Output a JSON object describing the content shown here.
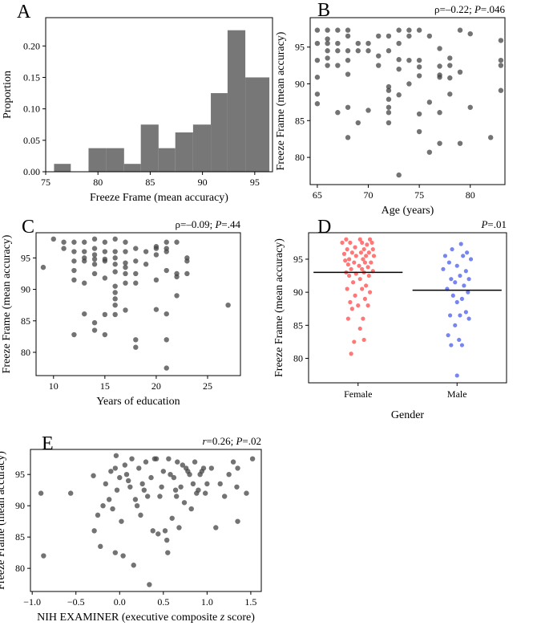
{
  "chart_data": [
    {
      "panel": "A",
      "type": "bar",
      "title": "",
      "xlabel": "Freeze Frame (mean accuracy)",
      "ylabel": "Proportion",
      "xlim": [
        75,
        96.7
      ],
      "ylim": [
        0,
        0.245
      ],
      "xticks": [
        75,
        80,
        85,
        90,
        95
      ],
      "yticks": [
        0.0,
        0.05,
        0.1,
        0.15,
        0.2
      ],
      "ytick_labels": [
        "0.00",
        "0.05",
        "0.10",
        "0.15",
        "0.20"
      ],
      "bin_edges": [
        75.8,
        77.4,
        79.1,
        80.8,
        82.5,
        84.1,
        85.8,
        87.4,
        89.1,
        90.8,
        92.4,
        94.1,
        96.4
      ],
      "values": [
        0.0125,
        0.0,
        0.0375,
        0.0375,
        0.0125,
        0.075,
        0.0375,
        0.0625,
        0.075,
        0.125,
        0.225,
        0.15
      ],
      "color": "#777777"
    },
    {
      "panel": "B",
      "type": "scatter",
      "stat_prefix": "ρ=–0.22; ",
      "stat_italic": "P",
      "stat_suffix": "=.046",
      "xlabel": "Age (years)",
      "ylabel": "Freeze Frame (mean accuracy)",
      "xlim": [
        64.3,
        83.4
      ],
      "ylim": [
        76.3,
        99.0
      ],
      "xticks": [
        65,
        70,
        75,
        80
      ],
      "yticks": [
        80,
        85,
        90,
        95
      ],
      "x": [
        65,
        65,
        65,
        65,
        65,
        65,
        66,
        66,
        66,
        66,
        66,
        66,
        67,
        67,
        67,
        67,
        67,
        68,
        68,
        68,
        68,
        68,
        68,
        68,
        69,
        69,
        69,
        70,
        70,
        70,
        71,
        71,
        71,
        72,
        72,
        72,
        72,
        72,
        72,
        72,
        72,
        73,
        73,
        73,
        73,
        73,
        73,
        74,
        74,
        74,
        74,
        75,
        75,
        75,
        75,
        75,
        75,
        76,
        76,
        76,
        77,
        77,
        77,
        77,
        77,
        77,
        78,
        78,
        78,
        78,
        79,
        79,
        79,
        80,
        80,
        82,
        83,
        83,
        83,
        83
      ],
      "y": [
        97.3,
        95.5,
        93.2,
        90.9,
        88.6,
        87.3,
        97.3,
        96.1,
        95.5,
        94.5,
        93.5,
        92.5,
        97.3,
        95.5,
        94.5,
        92.5,
        86.1,
        97.3,
        96.5,
        94.5,
        93.2,
        91.3,
        86.8,
        82.7,
        95.5,
        94.5,
        84.7,
        95.5,
        94.5,
        86.4,
        96.5,
        93.8,
        92.5,
        96.5,
        94.5,
        89.6,
        89.1,
        87.9,
        86.8,
        86.1,
        84.7,
        97.3,
        95.5,
        93.3,
        92.0,
        88.5,
        77.6,
        97.3,
        96.5,
        93.2,
        90.0,
        97.3,
        93.2,
        92.3,
        91.1,
        85.9,
        83.5,
        96.5,
        87.5,
        80.7,
        94.8,
        92.4,
        91.2,
        90.9,
        86.1,
        81.9,
        93.5,
        92.5,
        90.8,
        88.6,
        97.3,
        91.6,
        81.9,
        96.8,
        86.8,
        82.7,
        95.9,
        93.2,
        92.5,
        89.1
      ],
      "color": "#444444",
      "alpha": 0.75
    },
    {
      "panel": "C",
      "type": "scatter",
      "stat_prefix": "ρ=–0.09; ",
      "stat_italic": "P",
      "stat_suffix": "=.44",
      "xlabel": "Years of education",
      "ylabel": "Freeze Frame (mean accuracy)",
      "xlim": [
        8.3,
        28.2
      ],
      "ylim": [
        76.3,
        99.0
      ],
      "xticks": [
        10,
        15,
        20,
        25
      ],
      "yticks": [
        80,
        85,
        90,
        95
      ],
      "x": [
        9,
        10,
        11,
        11,
        12,
        12,
        12,
        12,
        12,
        12,
        13,
        13,
        13,
        13,
        13,
        13,
        14,
        14,
        14,
        14,
        14,
        14,
        14,
        14,
        15,
        15,
        15,
        15,
        15,
        15,
        15,
        16,
        16,
        16,
        16,
        16,
        16,
        16,
        16,
        16,
        16,
        17,
        17,
        17,
        17,
        17,
        17,
        17,
        18,
        18,
        18,
        18,
        18,
        18,
        19,
        19,
        20,
        20,
        20,
        20,
        20,
        21,
        21,
        21,
        21,
        21,
        21,
        21,
        22,
        22,
        22,
        22,
        23,
        23,
        23,
        27
      ],
      "y": [
        93.5,
        98.0,
        97.5,
        96.5,
        97.5,
        96.0,
        94.5,
        93.0,
        91.5,
        82.8,
        97.5,
        96.0,
        95.0,
        94.5,
        91.0,
        86.1,
        98.0,
        96.5,
        95.5,
        94.8,
        94.0,
        92.5,
        84.7,
        83.5,
        97.5,
        96.0,
        94.8,
        94.5,
        91.8,
        86.0,
        82.8,
        98.0,
        96.0,
        95.0,
        94.0,
        92.8,
        90.5,
        89.5,
        88.5,
        87.5,
        86.0,
        97.5,
        96.0,
        94.2,
        93.5,
        92.5,
        91.0,
        86.7,
        96.5,
        94.5,
        92.5,
        91.0,
        82.0,
        80.8,
        96.0,
        94.0,
        96.8,
        96.5,
        95.5,
        91.5,
        86.8,
        97.5,
        96.5,
        96.0,
        86.1,
        82.0,
        77.5,
        93.0,
        92.5,
        92.0,
        89.0,
        97.5,
        95.0,
        94.5,
        92.5,
        87.5
      ],
      "color": "#444444",
      "alpha": 0.75
    },
    {
      "panel": "D",
      "type": "strip",
      "stat_prefix": "",
      "stat_italic": "P",
      "stat_suffix": "=.01",
      "xlabel": "Gender",
      "ylabel": "Freeze Frame (mean accuracy)",
      "ylim": [
        76.3,
        99.0
      ],
      "yticks": [
        80,
        85,
        90,
        95
      ],
      "categories": [
        "Female",
        "Male"
      ],
      "means": [
        93.0,
        90.3
      ],
      "series": [
        {
          "name": "Female",
          "color": "#ff5555",
          "values": [
            98.0,
            98.0,
            98.0,
            97.5,
            97.5,
            97.5,
            97.5,
            97.2,
            96.8,
            96.5,
            96.5,
            96.5,
            96.0,
            96.0,
            96.0,
            95.8,
            95.5,
            95.5,
            95.5,
            95.0,
            95.0,
            94.8,
            94.5,
            94.5,
            94.5,
            94.2,
            94.0,
            93.8,
            93.5,
            93.5,
            93.2,
            93.0,
            93.0,
            92.8,
            92.5,
            92.5,
            92.0,
            91.5,
            91.0,
            90.5,
            90.5,
            90.0,
            89.5,
            89.0,
            88.5,
            88.0,
            88.0,
            87.5,
            86.0,
            86.0,
            84.5,
            82.5,
            82.8,
            80.7
          ],
          "offsets": [
            -0.12,
            0.02,
            0.12,
            -0.08,
            0.04,
            0.14,
            -0.16,
            0.09,
            -0.03,
            -0.11,
            0.06,
            0.15,
            -0.06,
            0.03,
            0.11,
            -0.14,
            -0.02,
            0.08,
            0.16,
            -0.09,
            0.05,
            -0.13,
            -0.04,
            0.07,
            0.13,
            -0.1,
            0.01,
            0.1,
            -0.07,
            0.04,
            0.15,
            -0.12,
            0.06,
            -0.02,
            -0.09,
            0.11,
            0.02,
            -0.05,
            0.08,
            -0.11,
            0.04,
            0.12,
            -0.03,
            0.07,
            -0.08,
            0.0,
            0.1,
            -0.06,
            -0.1,
            0.05,
            0.02,
            -0.04,
            0.06,
            -0.07
          ]
        },
        {
          "name": "Male",
          "color": "#5566ee",
          "values": [
            97.3,
            96.5,
            96.0,
            95.5,
            95.5,
            95.0,
            94.5,
            94.0,
            93.5,
            93.2,
            92.5,
            92.0,
            92.0,
            91.5,
            91.0,
            90.5,
            90.0,
            89.5,
            89.0,
            88.5,
            87.0,
            86.5,
            86.5,
            86.0,
            85.0,
            83.5,
            82.8,
            82.0,
            82.0,
            77.4
          ],
          "offsets": [
            0.04,
            -0.05,
            0.1,
            -0.12,
            0.06,
            0.14,
            -0.08,
            0.0,
            -0.14,
            0.09,
            0.03,
            -0.06,
            0.12,
            -0.02,
            0.07,
            -0.1,
            0.11,
            -0.04,
            0.05,
            0.0,
            0.09,
            -0.07,
            0.03,
            0.12,
            -0.02,
            -0.09,
            0.02,
            -0.06,
            0.05,
            0.0
          ]
        }
      ]
    },
    {
      "panel": "E",
      "type": "scatter",
      "stat_prefix": "",
      "stat_italic": "r",
      "stat_suffix": "=0.26; ",
      "stat_italic2": "P",
      "stat_suffix2": "=.02",
      "xlabel_prefix": "NIH EXAMINER (executive composite ",
      "xlabel_italic": "z",
      "xlabel_suffix": " score)",
      "ylabel": "Freeze Frame (mean accuracy)",
      "xlim": [
        -1.02,
        1.62
      ],
      "ylim": [
        76.3,
        99.0
      ],
      "xticks": [
        -1.0,
        -0.5,
        0.0,
        0.5,
        1.0,
        1.5
      ],
      "xtick_labels": [
        "−1.0",
        "−0.5",
        "0.0",
        "0.5",
        "1.0",
        "1.5"
      ],
      "yticks": [
        80,
        85,
        90,
        95
      ],
      "x": [
        -0.9,
        -0.87,
        -0.56,
        -0.3,
        -0.29,
        -0.25,
        -0.22,
        -0.19,
        -0.16,
        -0.12,
        -0.1,
        -0.08,
        -0.05,
        -0.03,
        -0.05,
        -0.04,
        0.0,
        0.02,
        0.04,
        0.06,
        0.08,
        0.1,
        0.12,
        0.14,
        0.16,
        0.18,
        0.2,
        0.22,
        0.24,
        0.26,
        0.28,
        0.3,
        0.32,
        0.34,
        0.36,
        0.38,
        0.4,
        0.42,
        0.44,
        0.46,
        0.48,
        0.5,
        0.52,
        0.54,
        0.55,
        0.56,
        0.58,
        0.6,
        0.62,
        0.64,
        0.66,
        0.68,
        0.7,
        0.72,
        0.74,
        0.76,
        0.78,
        0.8,
        0.82,
        0.84,
        0.86,
        0.88,
        0.9,
        0.92,
        0.94,
        0.96,
        0.98,
        1.0,
        1.05,
        1.1,
        1.15,
        1.2,
        1.25,
        1.3,
        1.34,
        1.35,
        1.45,
        1.52,
        1.35,
        0.65
      ],
      "y": [
        92.0,
        82.0,
        92.0,
        94.8,
        86.0,
        88.5,
        83.5,
        90.0,
        93.5,
        91.0,
        95.5,
        89.5,
        96.0,
        92.5,
        82.5,
        98.0,
        94.5,
        87.5,
        82.0,
        96.5,
        95.0,
        94.0,
        93.0,
        97.5,
        80.5,
        91.0,
        90.0,
        96.0,
        88.5,
        93.5,
        92.5,
        97.0,
        91.5,
        77.4,
        94.5,
        86.0,
        97.5,
        97.5,
        85.5,
        91.5,
        93.0,
        95.5,
        86.0,
        84.5,
        82.5,
        97.5,
        95.0,
        88.0,
        94.5,
        92.5,
        97.0,
        86.5,
        93.0,
        96.5,
        90.5,
        96.0,
        95.5,
        95.0,
        89.5,
        93.5,
        97.0,
        92.0,
        92.5,
        95.0,
        95.5,
        96.0,
        92.0,
        93.5,
        96.0,
        86.5,
        93.5,
        91.5,
        95.0,
        97.0,
        93.0,
        87.5,
        92.0,
        97.5,
        96.0,
        91.5
      ],
      "color": "#444444",
      "alpha": 0.75
    }
  ]
}
